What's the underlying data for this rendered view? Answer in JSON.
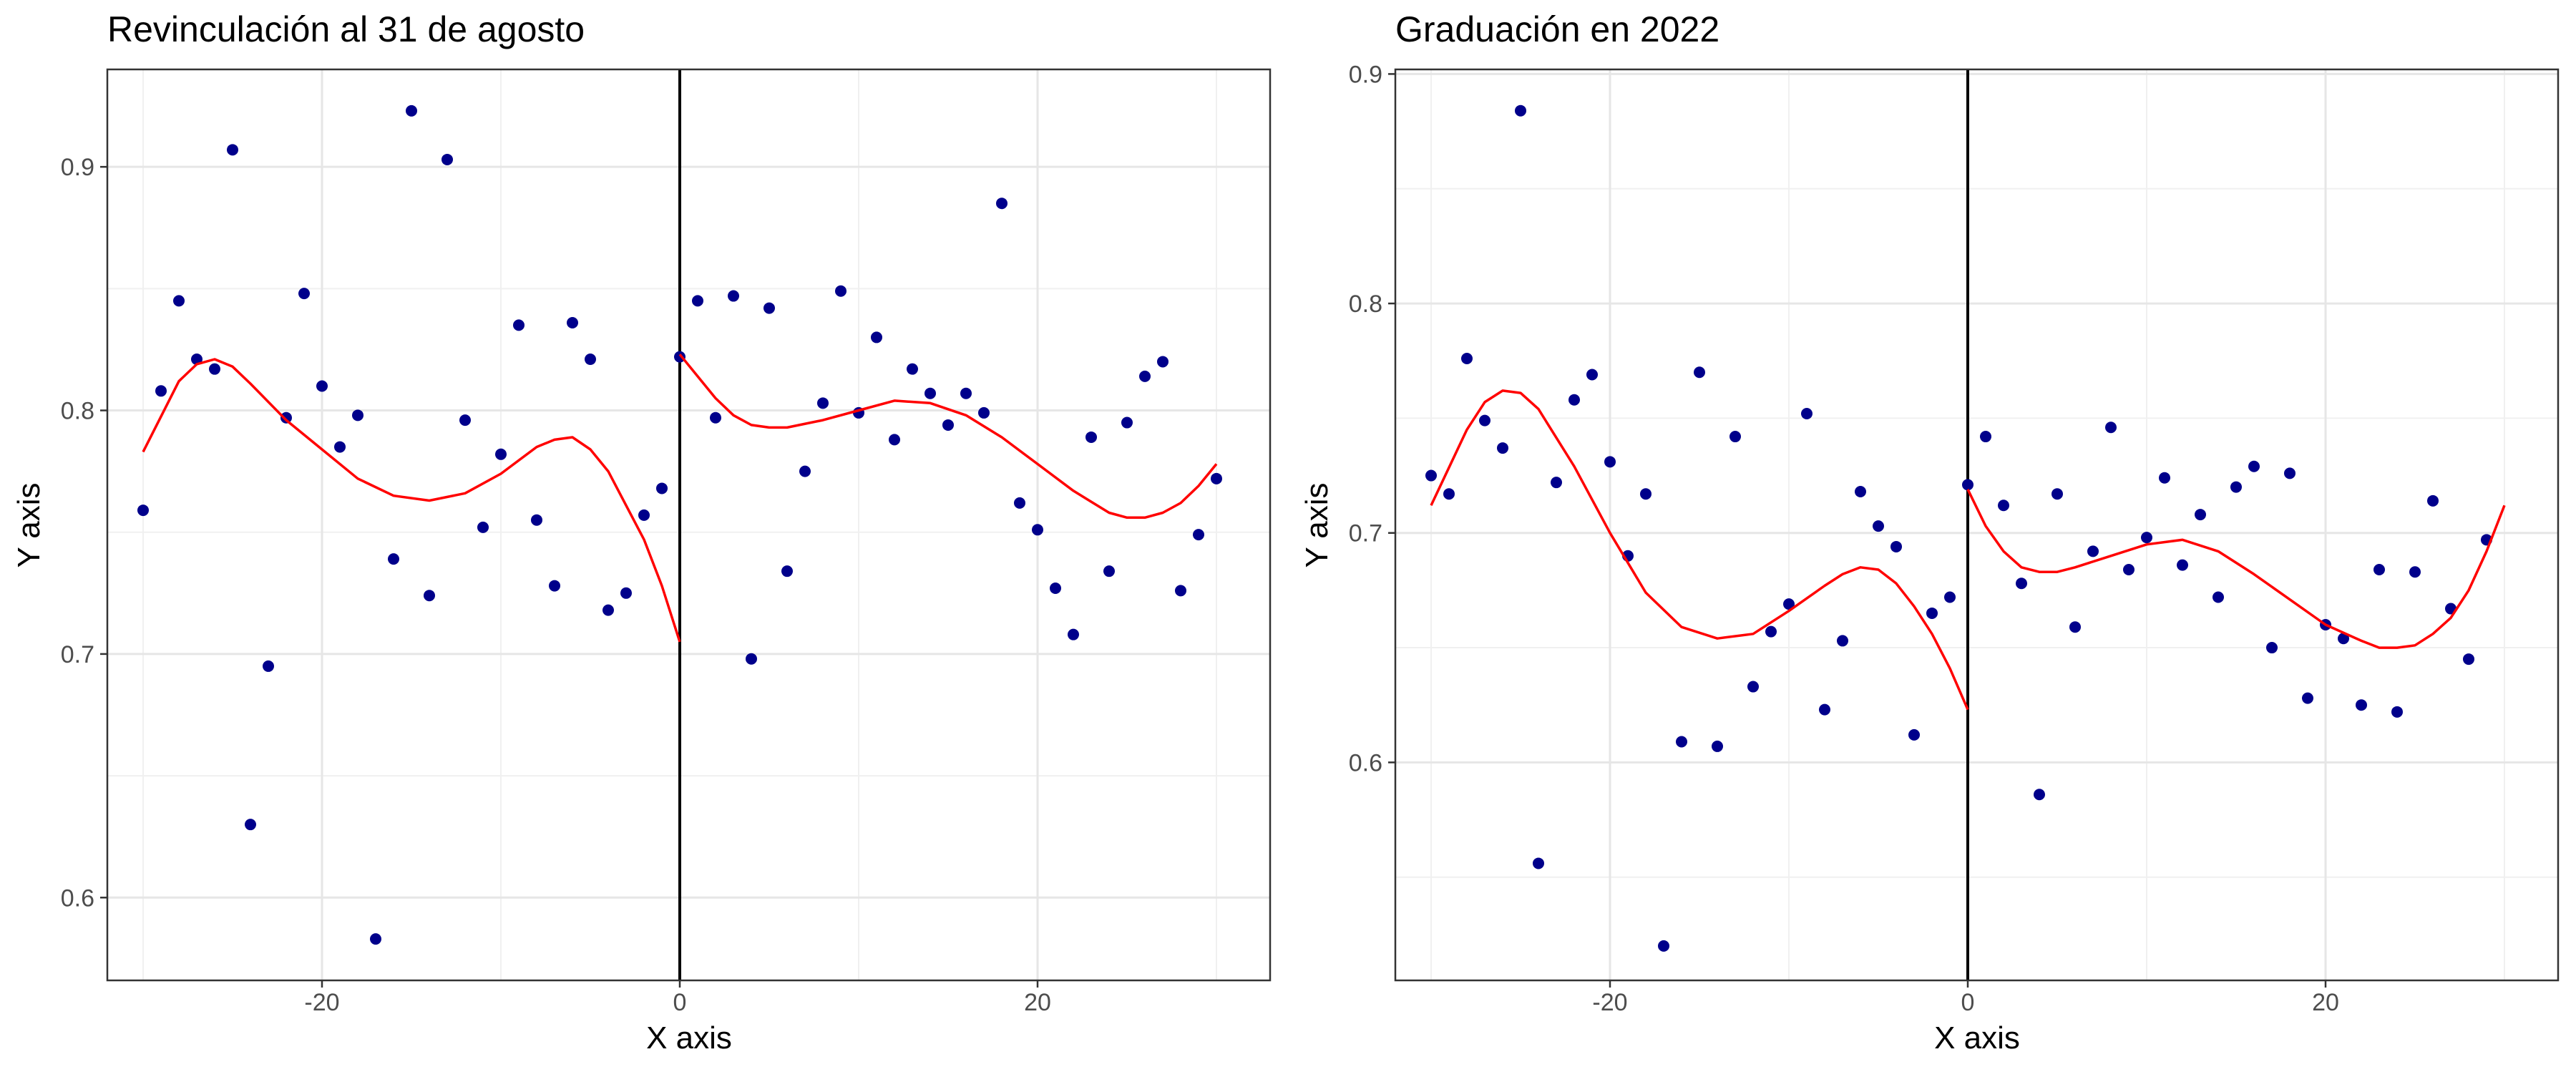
{
  "chart_data": [
    {
      "type": "scatter",
      "title": "Revinculación al 31 de agosto",
      "xlabel": "X axis",
      "ylabel": "Y axis",
      "xlim": [
        -32,
        33
      ],
      "ylim": [
        0.566,
        0.94
      ],
      "x_ticks": [
        -20,
        0,
        20
      ],
      "y_ticks": [
        0.6,
        0.7,
        0.8,
        0.9
      ],
      "grid": true,
      "cutoff_x": 0,
      "point_color": "#00008B",
      "fit_color": "#FF0000",
      "points": [
        [
          -30,
          0.759
        ],
        [
          -29,
          0.808
        ],
        [
          -28,
          0.845
        ],
        [
          -27,
          0.821
        ],
        [
          -26,
          0.817
        ],
        [
          -25,
          0.907
        ],
        [
          -24,
          0.63
        ],
        [
          -23,
          0.695
        ],
        [
          -22,
          0.797
        ],
        [
          -21,
          0.848
        ],
        [
          -20,
          0.81
        ],
        [
          -19,
          0.785
        ],
        [
          -18,
          0.798
        ],
        [
          -17,
          0.583
        ],
        [
          -16,
          0.739
        ],
        [
          -15,
          0.923
        ],
        [
          -14,
          0.724
        ],
        [
          -13,
          0.903
        ],
        [
          -12,
          0.796
        ],
        [
          -11,
          0.752
        ],
        [
          -10,
          0.782
        ],
        [
          -9,
          0.835
        ],
        [
          -8,
          0.755
        ],
        [
          -7,
          0.728
        ],
        [
          -6,
          0.836
        ],
        [
          -5,
          0.821
        ],
        [
          -4,
          0.718
        ],
        [
          -3,
          0.725
        ],
        [
          -2,
          0.757
        ],
        [
          -1,
          0.768
        ],
        [
          0,
          0.822
        ],
        [
          1,
          0.845
        ],
        [
          2,
          0.797
        ],
        [
          3,
          0.847
        ],
        [
          4,
          0.698
        ],
        [
          5,
          0.842
        ],
        [
          6,
          0.734
        ],
        [
          7,
          0.775
        ],
        [
          8,
          0.803
        ],
        [
          9,
          0.849
        ],
        [
          10,
          0.799
        ],
        [
          11,
          0.83
        ],
        [
          12,
          0.788
        ],
        [
          13,
          0.817
        ],
        [
          14,
          0.807
        ],
        [
          15,
          0.794
        ],
        [
          16,
          0.807
        ],
        [
          17,
          0.799
        ],
        [
          18,
          0.885
        ],
        [
          19,
          0.762
        ],
        [
          20,
          0.751
        ],
        [
          21,
          0.727
        ],
        [
          22,
          0.708
        ],
        [
          23,
          0.789
        ],
        [
          24,
          0.734
        ],
        [
          25,
          0.795
        ],
        [
          26,
          0.814
        ],
        [
          27,
          0.82
        ],
        [
          28,
          0.726
        ],
        [
          29,
          0.749
        ],
        [
          30,
          0.772
        ]
      ],
      "fit_left": [
        [
          -30,
          0.783
        ],
        [
          -28,
          0.812
        ],
        [
          -27,
          0.819
        ],
        [
          -26,
          0.821
        ],
        [
          -25,
          0.818
        ],
        [
          -24,
          0.811
        ],
        [
          -22,
          0.796
        ],
        [
          -20,
          0.784
        ],
        [
          -18,
          0.772
        ],
        [
          -16,
          0.765
        ],
        [
          -14,
          0.763
        ],
        [
          -12,
          0.766
        ],
        [
          -10,
          0.774
        ],
        [
          -8,
          0.785
        ],
        [
          -7,
          0.788
        ],
        [
          -6,
          0.789
        ],
        [
          -5,
          0.784
        ],
        [
          -4,
          0.775
        ],
        [
          -3,
          0.761
        ],
        [
          -2,
          0.747
        ],
        [
          -1,
          0.728
        ],
        [
          0,
          0.705
        ]
      ],
      "fit_right": [
        [
          0,
          0.823
        ],
        [
          1,
          0.814
        ],
        [
          2,
          0.805
        ],
        [
          3,
          0.798
        ],
        [
          4,
          0.794
        ],
        [
          5,
          0.793
        ],
        [
          6,
          0.793
        ],
        [
          8,
          0.796
        ],
        [
          10,
          0.8
        ],
        [
          12,
          0.804
        ],
        [
          14,
          0.803
        ],
        [
          16,
          0.798
        ],
        [
          18,
          0.789
        ],
        [
          20,
          0.778
        ],
        [
          22,
          0.767
        ],
        [
          24,
          0.758
        ],
        [
          25,
          0.756
        ],
        [
          26,
          0.756
        ],
        [
          27,
          0.758
        ],
        [
          28,
          0.762
        ],
        [
          29,
          0.769
        ],
        [
          30,
          0.778
        ]
      ]
    },
    {
      "type": "scatter",
      "title": "Graduación en 2022",
      "xlabel": "X axis",
      "ylabel": "Y axis",
      "xlim": [
        -32,
        33
      ],
      "ylim": [
        0.505,
        0.902
      ],
      "x_ticks": [
        -20,
        0,
        20
      ],
      "y_ticks": [
        0.6,
        0.7,
        0.8,
        0.9
      ],
      "grid": true,
      "cutoff_x": 0,
      "point_color": "#00008B",
      "fit_color": "#FF0000",
      "points": [
        [
          -30,
          0.725
        ],
        [
          -29,
          0.717
        ],
        [
          -28,
          0.776
        ],
        [
          -27,
          0.749
        ],
        [
          -26,
          0.737
        ],
        [
          -25,
          0.884
        ],
        [
          -24,
          0.556
        ],
        [
          -23,
          0.722
        ],
        [
          -22,
          0.758
        ],
        [
          -21,
          0.769
        ],
        [
          -20,
          0.731
        ],
        [
          -19,
          0.69
        ],
        [
          -18,
          0.717
        ],
        [
          -17,
          0.52
        ],
        [
          -16,
          0.609
        ],
        [
          -15,
          0.77
        ],
        [
          -14,
          0.607
        ],
        [
          -13,
          0.742
        ],
        [
          -12,
          0.633
        ],
        [
          -11,
          0.657
        ],
        [
          -10,
          0.669
        ],
        [
          -9,
          0.752
        ],
        [
          -8,
          0.623
        ],
        [
          -7,
          0.653
        ],
        [
          -6,
          0.718
        ],
        [
          -5,
          0.703
        ],
        [
          -4,
          0.694
        ],
        [
          -3,
          0.612
        ],
        [
          -2,
          0.665
        ],
        [
          -1,
          0.672
        ],
        [
          0,
          0.721
        ],
        [
          1,
          0.742
        ],
        [
          2,
          0.712
        ],
        [
          3,
          0.678
        ],
        [
          4,
          0.586
        ],
        [
          5,
          0.717
        ],
        [
          6,
          0.659
        ],
        [
          7,
          0.692
        ],
        [
          8,
          0.746
        ],
        [
          9,
          0.684
        ],
        [
          10,
          0.698
        ],
        [
          11,
          0.724
        ],
        [
          12,
          0.686
        ],
        [
          13,
          0.708
        ],
        [
          14,
          0.672
        ],
        [
          15,
          0.72
        ],
        [
          16,
          0.729
        ],
        [
          17,
          0.65
        ],
        [
          18,
          0.726
        ],
        [
          19,
          0.628
        ],
        [
          20,
          0.66
        ],
        [
          21,
          0.654
        ],
        [
          22,
          0.625
        ],
        [
          23,
          0.684
        ],
        [
          24,
          0.622
        ],
        [
          25,
          0.683
        ],
        [
          26,
          0.714
        ],
        [
          27,
          0.667
        ],
        [
          28,
          0.645
        ],
        [
          29,
          0.697
        ]
      ],
      "fit_left": [
        [
          -30,
          0.712
        ],
        [
          -28,
          0.745
        ],
        [
          -27,
          0.757
        ],
        [
          -26,
          0.762
        ],
        [
          -25,
          0.761
        ],
        [
          -24,
          0.754
        ],
        [
          -22,
          0.729
        ],
        [
          -20,
          0.7
        ],
        [
          -18,
          0.674
        ],
        [
          -16,
          0.659
        ],
        [
          -14,
          0.654
        ],
        [
          -12,
          0.656
        ],
        [
          -10,
          0.666
        ],
        [
          -8,
          0.677
        ],
        [
          -7,
          0.682
        ],
        [
          -6,
          0.685
        ],
        [
          -5,
          0.684
        ],
        [
          -4,
          0.678
        ],
        [
          -3,
          0.668
        ],
        [
          -2,
          0.656
        ],
        [
          -1,
          0.641
        ],
        [
          0,
          0.623
        ]
      ],
      "fit_right": [
        [
          0,
          0.719
        ],
        [
          1,
          0.703
        ],
        [
          2,
          0.692
        ],
        [
          3,
          0.685
        ],
        [
          4,
          0.683
        ],
        [
          5,
          0.683
        ],
        [
          6,
          0.685
        ],
        [
          8,
          0.69
        ],
        [
          10,
          0.695
        ],
        [
          12,
          0.697
        ],
        [
          14,
          0.692
        ],
        [
          16,
          0.682
        ],
        [
          18,
          0.671
        ],
        [
          20,
          0.66
        ],
        [
          22,
          0.653
        ],
        [
          23,
          0.65
        ],
        [
          24,
          0.65
        ],
        [
          25,
          0.651
        ],
        [
          26,
          0.656
        ],
        [
          27,
          0.663
        ],
        [
          28,
          0.675
        ],
        [
          29,
          0.692
        ],
        [
          30,
          0.712
        ]
      ]
    }
  ]
}
